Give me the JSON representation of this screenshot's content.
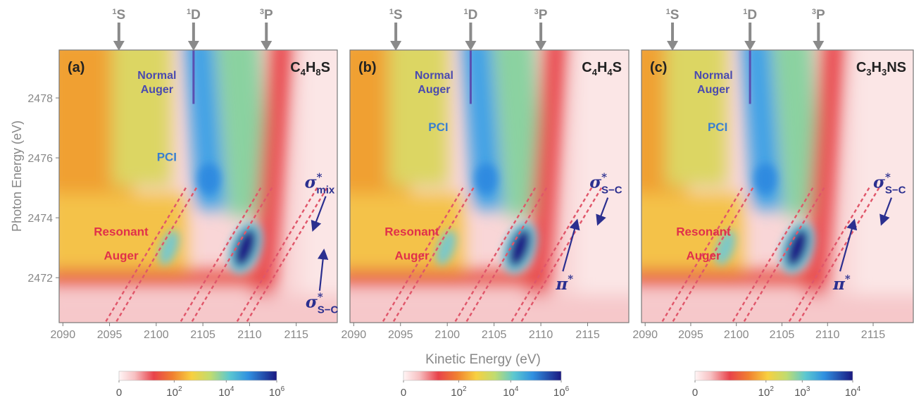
{
  "figure": {
    "ylabel": "Photon Energy (eV)",
    "xlabel": "Kinetic Energy (eV)",
    "yticks": [
      2472,
      2474,
      2476,
      2478
    ],
    "ylim": [
      2470.5,
      2479.6
    ],
    "colors": {
      "axis_gray": "#888888",
      "label_purple": "#4a4ab0",
      "label_blue": "#3a7fd0",
      "label_red": "#e0304a",
      "arrow_navy": "#2b2f8f",
      "dashed_red": "#e0566a",
      "line_purple": "#5a4fb0"
    },
    "state_labels": {
      "s": {
        "sup": "1",
        "main": "S"
      },
      "d": {
        "sup": "1",
        "main": "D"
      },
      "p": {
        "sup": "3",
        "main": "P"
      }
    },
    "region_labels": {
      "normal1": "Normal",
      "normal2": "Auger",
      "pci": "PCI",
      "resonant1": "Resonant",
      "resonant2": "Auger"
    }
  },
  "chart_data": [
    {
      "type": "heatmap",
      "panel_label": "(a)",
      "molecule": {
        "parts": [
          "C",
          "4",
          "H",
          "8",
          "S"
        ]
      },
      "xticks": [
        2090,
        2095,
        2100,
        2105,
        2110,
        2115
      ],
      "xlim": [
        2089.6,
        2119.4
      ],
      "ylim": [
        2470.5,
        2479.6
      ],
      "state_positions": {
        "1S": 2096.0,
        "1D": 2104.0,
        "3P": 2111.8
      },
      "normal_auger_line": {
        "x": 2104.0,
        "y_from": 2477.8,
        "y_to": 2479.6
      },
      "annotations": [
        {
          "sym": "σ",
          "sup": "*",
          "sub": "mix",
          "x": 2115.9,
          "y": 2475.0
        },
        {
          "sym": "σ",
          "sup": "*",
          "sub": "S−C",
          "x": 2116.0,
          "y": 2471.0
        }
      ],
      "colorbar": {
        "tick_labels": [
          {
            "base": "0",
            "exp": ""
          },
          {
            "base": "10",
            "exp": "2"
          },
          {
            "base": "10",
            "exp": "4"
          },
          {
            "base": "10",
            "exp": "6"
          }
        ]
      }
    },
    {
      "type": "heatmap",
      "panel_label": "(b)",
      "molecule": {
        "parts": [
          "C",
          "4",
          "H",
          "4",
          "S"
        ]
      },
      "xticks": [
        2090,
        2095,
        2100,
        2105,
        2110,
        2115
      ],
      "xlim": [
        2089.6,
        2119.4
      ],
      "ylim": [
        2470.5,
        2479.6
      ],
      "state_positions": {
        "1S": 2094.5,
        "1D": 2102.5,
        "3P": 2110.0
      },
      "normal_auger_line": {
        "x": 2102.5,
        "y_from": 2477.8,
        "y_to": 2479.6
      },
      "annotations": [
        {
          "sym": "σ",
          "sup": "*",
          "sub": "S−C",
          "x": 2115.2,
          "y": 2475.0
        },
        {
          "sym": "π",
          "sup": "*",
          "sub": "",
          "x": 2111.6,
          "y": 2471.6
        }
      ],
      "colorbar": {
        "tick_labels": [
          {
            "base": "0",
            "exp": ""
          },
          {
            "base": "10",
            "exp": "2"
          },
          {
            "base": "10",
            "exp": "4"
          },
          {
            "base": "10",
            "exp": "6"
          }
        ]
      }
    },
    {
      "type": "heatmap",
      "panel_label": "(c)",
      "molecule": {
        "parts": [
          "C",
          "3",
          "H",
          "3",
          "NS"
        ]
      },
      "xticks": [
        2090,
        2095,
        2100,
        2105,
        2110,
        2115
      ],
      "xlim": [
        2089.6,
        2119.4
      ],
      "ylim": [
        2470.5,
        2479.6
      ],
      "state_positions": {
        "1S": 2093.0,
        "1D": 2101.5,
        "3P": 2109.0
      },
      "normal_auger_line": {
        "x": 2101.5,
        "y_from": 2477.8,
        "y_to": 2479.6
      },
      "annotations": [
        {
          "sym": "σ",
          "sup": "*",
          "sub": "S−C",
          "x": 2115.0,
          "y": 2475.0
        },
        {
          "sym": "π",
          "sup": "*",
          "sub": "",
          "x": 2110.6,
          "y": 2471.6
        }
      ],
      "colorbar": {
        "tick_labels": [
          {
            "base": "0",
            "exp": ""
          },
          {
            "base": "10",
            "exp": "2"
          },
          {
            "base": "10",
            "exp": "3"
          },
          {
            "base": "10",
            "exp": "4"
          }
        ]
      }
    }
  ]
}
